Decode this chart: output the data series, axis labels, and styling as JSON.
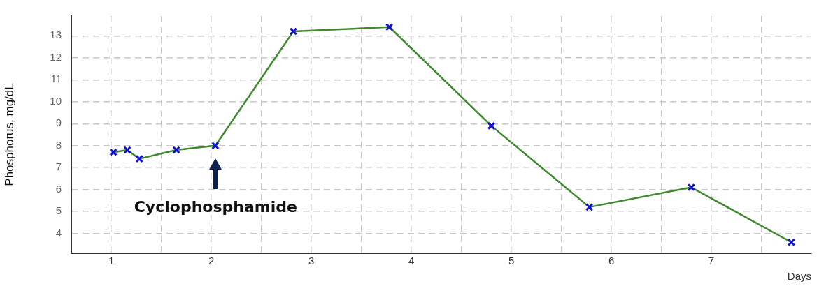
{
  "chart_data": {
    "type": "line",
    "ylabel": "Phosphorus, mg/dL",
    "xlabel": "Days",
    "xlim": [
      0.6,
      8
    ],
    "xticks": [
      1,
      {
        "value": 1.5,
        "label": null
      },
      2,
      {
        "value": 2.5,
        "label": null
      },
      3,
      {
        "value": 3.5,
        "label": null
      },
      4,
      {
        "value": 4.5,
        "label": null
      },
      5,
      {
        "value": 5.5,
        "label": null
      },
      6,
      {
        "value": 6.5,
        "label": null
      },
      7,
      {
        "value": 7.5,
        "label": null
      }
    ],
    "ylim": [
      3.1,
      13.9
    ],
    "yticks": [
      4,
      5,
      6,
      7,
      8,
      9,
      10,
      11,
      12,
      13
    ],
    "grid": true,
    "legend": false,
    "line_style": "solid",
    "marker": "cross",
    "series": [
      {
        "color": "#3f8a2f",
        "x": [
          1.02,
          1.16,
          1.28,
          1.65,
          2.04,
          2.82,
          3.78,
          4.8,
          5.78,
          6.8,
          7.8
        ],
        "values": [
          7.7,
          7.8,
          7.4,
          7.8,
          8.0,
          13.2,
          13.4,
          8.9,
          5.2,
          6.1,
          3.6
        ]
      }
    ],
    "annotations": [
      "Cyclophosphamide"
    ]
  }
}
